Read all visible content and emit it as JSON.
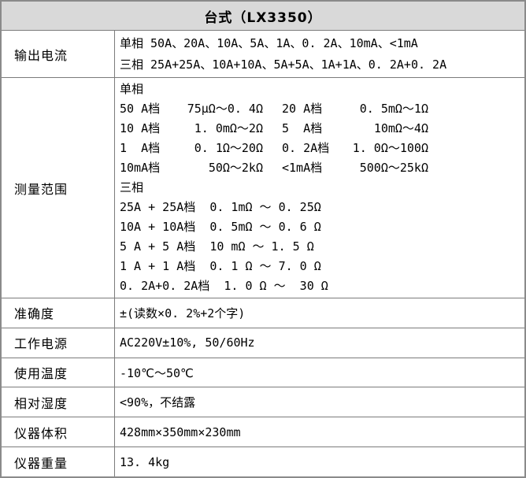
{
  "title": "台式（LX3350）",
  "rows": {
    "output_current": {
      "label": "输出电流",
      "lines": [
        "单相 50A、20A、10A、5A、1A、0. 2A、10mA、<1mA",
        "三相 25A+25A、10A+10A、5A+5A、1A+1A、0. 2A+0. 2A"
      ]
    },
    "measure_range": {
      "label": "测量范围",
      "single_title": "单相",
      "single_rows": [
        {
          "b1": "50 A档",
          "r1": "75μΩ～0. 4Ω",
          "b2": "20 A档",
          "r2": "0. 5mΩ～1Ω"
        },
        {
          "b1": "10 A档",
          "r1": "1. 0mΩ～2Ω",
          "b2": "5  A档",
          "r2": "10mΩ～4Ω"
        },
        {
          "b1": "1  A档",
          "r1": "0. 1Ω～20Ω",
          "b2": "0. 2A档",
          "r2": "1. 0Ω～100Ω"
        },
        {
          "b1": "10mA档",
          "r1": "50Ω～2kΩ",
          "b2": "<1mA档",
          "r2": "500Ω～25kΩ"
        }
      ],
      "three_title": "三相",
      "three_lines": [
        "25A + 25A档  0. 1mΩ ～ 0. 25Ω",
        "10A + 10A档  0. 5mΩ ～ 0. 6 Ω",
        "5 A + 5 A档  10 mΩ ～ 1. 5 Ω",
        "1 A + 1 A档  0. 1 Ω ～ 7. 0 Ω",
        "0. 2A+0. 2A档  1. 0 Ω ～  30 Ω"
      ]
    },
    "accuracy": {
      "label": "准确度",
      "value": "±(读数×0. 2%+2个字)"
    },
    "power_supply": {
      "label": "工作电源",
      "value": "AC220V±10%, 50/60Hz"
    },
    "temperature": {
      "label": "使用温度",
      "value": "-10℃～50℃"
    },
    "humidity": {
      "label": "相对湿度",
      "value": "<90%，不结露"
    },
    "dimensions": {
      "label": "仪器体积",
      "value": "428mm×350mm×230mm"
    },
    "weight": {
      "label": "仪器重量",
      "value": "13. 4kg"
    }
  },
  "colors": {
    "header_bg": "#d9d9d9",
    "outer_border": "#8a8a8a",
    "inner_border": "#7b7b7b",
    "text": "#000000"
  }
}
